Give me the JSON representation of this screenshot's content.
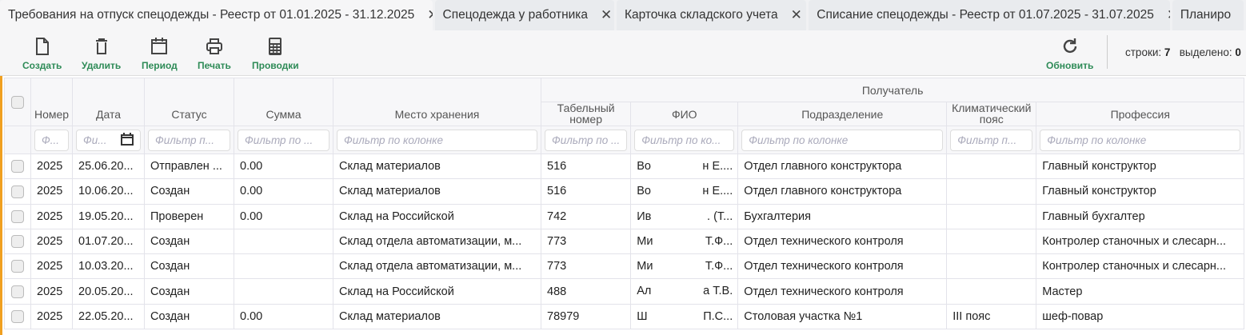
{
  "tabs": [
    {
      "label": "Требования на отпуск спецодежды - Реестр от 01.01.2025 - 31.12.2025",
      "active": true
    },
    {
      "label": "Спецодежда у работника"
    },
    {
      "label": "Карточка складского учета"
    },
    {
      "label": "Списание спецодежды - Реестр от 01.07.2025 - 31.07.2025"
    },
    {
      "label": "Планиро"
    }
  ],
  "toolbar": {
    "create": "Создать",
    "delete": "Удалить",
    "period": "Период",
    "print": "Печать",
    "postings": "Проводки",
    "refresh": "Обновить",
    "rows_label": "строки:",
    "rows_count": "7",
    "selected_label": "выделено:",
    "selected_count": "0"
  },
  "colors": {
    "accent": "#2e8b57",
    "focus": "#f0a020"
  },
  "header": {
    "group": "Получатель",
    "cols": [
      "Номер",
      "Дата",
      "Статус",
      "Сумма",
      "Место хранения",
      "Табельный номер",
      "ФИО",
      "Подразделение",
      "Климатический пояс",
      "Профессия"
    ],
    "filters": [
      "Ф...",
      "Фи...",
      "Фильтр п...",
      "Фильтр по ...",
      "Фильтр по колонке",
      "Фильтр по ...",
      "Фильтр по ко...",
      "Фильтр по колонке",
      "Фильтр п...",
      "Фильтр по колонке"
    ]
  },
  "rows": [
    {
      "num": "2025",
      "date": "25.06.20...",
      "status": "Отправлен ...",
      "sum": "0.00",
      "store": "Склад материалов",
      "tab": "516",
      "fio_a": "Во",
      "fio_b": "н Е....",
      "dept": "Отдел главного конструктора",
      "zone": "",
      "prof": "Главный конструктор"
    },
    {
      "num": "2025",
      "date": "10.06.20...",
      "status": "Создан",
      "sum": "0.00",
      "store": "Склад материалов",
      "tab": "516",
      "fio_a": "Во",
      "fio_b": "н Е....",
      "dept": "Отдел главного конструктора",
      "zone": "",
      "prof": "Главный конструктор"
    },
    {
      "num": "2025",
      "date": "19.05.20...",
      "status": "Проверен",
      "sum": "0.00",
      "store": "Склад на Российской",
      "tab": "742",
      "fio_a": "Ив",
      "fio_b": ". (Т...",
      "dept": "Бухгалтерия",
      "zone": "",
      "prof": "Главный бухгалтер"
    },
    {
      "num": "2025",
      "date": "01.07.20...",
      "status": "Создан",
      "sum": "",
      "store": "Склад отдела автоматизации, м...",
      "tab": "773",
      "fio_a": "Ми",
      "fio_b": "Т.Ф...",
      "dept": "Отдел технического контроля",
      "zone": "",
      "prof": "Контролер станочных и слесарн..."
    },
    {
      "num": "2025",
      "date": "10.03.20...",
      "status": "Создан",
      "sum": "",
      "store": "Склад отдела автоматизации, м...",
      "tab": "773",
      "fio_a": "Ми",
      "fio_b": "Т.Ф...",
      "dept": "Отдел технического контроля",
      "zone": "",
      "prof": "Контролер станочных и слесарн..."
    },
    {
      "num": "2025",
      "date": "20.05.20...",
      "status": "Создан",
      "sum": "",
      "store": "Склад на Российской",
      "tab": "488",
      "fio_a": "Ал",
      "fio_b": "а Т.В.",
      "dept": "Отдел технического контроля",
      "zone": "",
      "prof": "Мастер"
    },
    {
      "num": "2025",
      "date": "22.05.20...",
      "status": "Создан",
      "sum": "0.00",
      "store": "Склад материалов",
      "tab": "78979",
      "fio_a": "Ш",
      "fio_b": "П.С...",
      "dept": "Столовая участка №1",
      "zone": "III пояс",
      "prof": "шеф-повар"
    }
  ]
}
